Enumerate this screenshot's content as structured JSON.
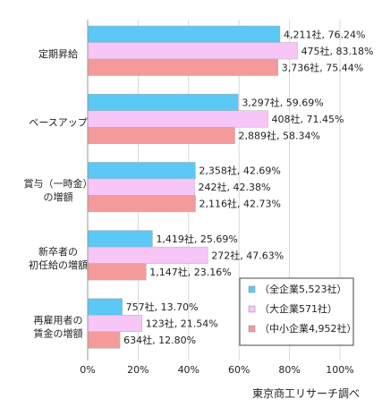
{
  "chart_data": {
    "type": "bar",
    "orientation": "horizontal",
    "categories": [
      [
        "定期昇給"
      ],
      [
        "ベースアップ"
      ],
      [
        "賞与（一時金）",
        "の増額"
      ],
      [
        "新卒者の",
        "初任給の増額"
      ],
      [
        "再雇用者の",
        "賃金の増額"
      ]
    ],
    "series": [
      {
        "name": "（全企業5,523社）",
        "color": "#5BC8F5",
        "values": [
          76.24,
          59.69,
          42.69,
          25.69,
          13.7
        ],
        "labels": [
          "4,211社, 76.24%",
          "3,297社, 59.69%",
          "2,358社, 42.69%",
          "1,419社, 25.69%",
          "757社, 13.70%"
        ]
      },
      {
        "name": "（大企業571社）",
        "color": "#F7C6F7",
        "values": [
          83.18,
          71.45,
          42.38,
          47.63,
          21.54
        ],
        "labels": [
          "475社, 83.18%",
          "408社, 71.45%",
          "242社, 42.38%",
          "272社, 47.63%",
          "123社, 21.54%"
        ]
      },
      {
        "name": "（中小企業4,952社）",
        "color": "#F59A9A",
        "values": [
          75.44,
          58.34,
          42.73,
          23.16,
          12.8
        ],
        "labels": [
          "3,736社, 75.44%",
          "2,889社, 58.34%",
          "2,116社, 42.73%",
          "1,147社, 23.16%",
          "634社, 12.80%"
        ]
      }
    ],
    "xlim": [
      0,
      100
    ],
    "xticks": [
      "0%",
      "20%",
      "40%",
      "60%",
      "80%",
      "100%"
    ],
    "grid": true,
    "legend_position": "bottom-right",
    "source": "東京商工リサーチ調べ"
  }
}
